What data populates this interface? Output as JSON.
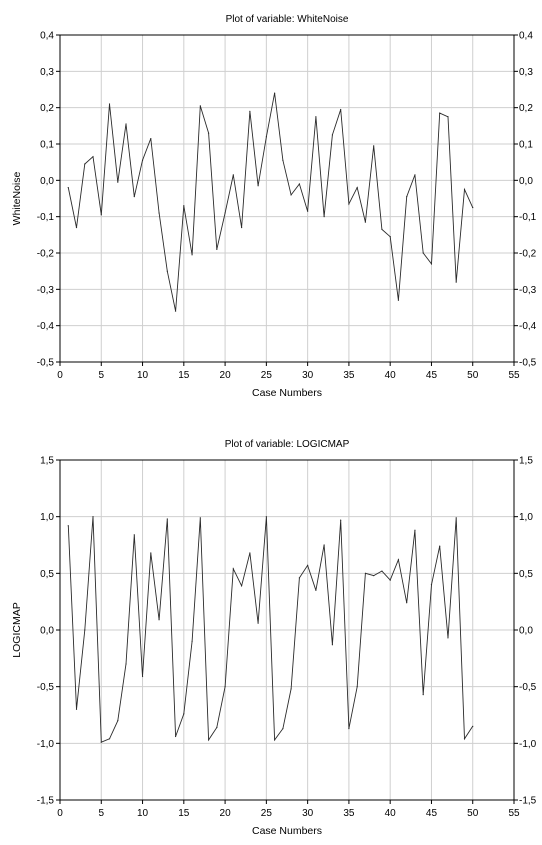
{
  "chart_data": [
    {
      "type": "line",
      "title": "Plot of variable: WhiteNoise",
      "xlabel": "Case Numbers",
      "ylabel": "WhiteNoise",
      "xlim": [
        0,
        55
      ],
      "ylim": [
        -0.5,
        0.4
      ],
      "x_ticks": [
        0,
        5,
        10,
        15,
        20,
        25,
        30,
        35,
        40,
        45,
        50,
        55
      ],
      "x_tick_labels": [
        "0",
        "5",
        "10",
        "15",
        "20",
        "25",
        "30",
        "35",
        "40",
        "45",
        "50",
        "55"
      ],
      "y_ticks": [
        -0.5,
        -0.4,
        -0.3,
        -0.2,
        -0.1,
        0.0,
        0.1,
        0.2,
        0.3,
        0.4
      ],
      "y_tick_labels": [
        "-0,5",
        "-0,4",
        "-0,3",
        "-0,2",
        "-0,1",
        "0,0",
        "0,1",
        "0,2",
        "0,3",
        "0,4"
      ],
      "grid": true,
      "x": [
        1,
        2,
        3,
        4,
        5,
        6,
        7,
        8,
        9,
        10,
        11,
        12,
        13,
        14,
        15,
        16,
        17,
        18,
        19,
        20,
        21,
        22,
        23,
        24,
        25,
        26,
        27,
        28,
        29,
        30,
        31,
        32,
        33,
        34,
        35,
        36,
        37,
        38,
        39,
        40,
        41,
        42,
        43,
        44,
        45,
        46,
        47,
        48,
        49,
        50
      ],
      "y": [
        -0.02,
        -0.13,
        0.045,
        0.065,
        -0.095,
        0.21,
        -0.005,
        0.155,
        -0.045,
        0.055,
        0.115,
        -0.09,
        -0.25,
        -0.36,
        -0.07,
        -0.205,
        0.205,
        0.13,
        -0.19,
        -0.09,
        0.015,
        -0.13,
        0.19,
        -0.015,
        0.12,
        0.24,
        0.055,
        -0.04,
        -0.01,
        -0.085,
        0.175,
        -0.1,
        0.125,
        0.195,
        -0.065,
        -0.02,
        -0.115,
        0.095,
        -0.135,
        -0.155,
        -0.33,
        -0.045,
        0.015,
        -0.2,
        -0.23,
        0.185,
        0.175,
        -0.28,
        -0.025,
        -0.075
      ]
    },
    {
      "type": "line",
      "title": "Plot of variable: LOGICMAP",
      "xlabel": "Case Numbers",
      "ylabel": "LOGICMAP",
      "xlim": [
        0,
        55
      ],
      "ylim": [
        -1.5,
        1.5
      ],
      "x_ticks": [
        0,
        5,
        10,
        15,
        20,
        25,
        30,
        35,
        40,
        45,
        50,
        55
      ],
      "x_tick_labels": [
        "0",
        "5",
        "10",
        "15",
        "20",
        "25",
        "30",
        "35",
        "40",
        "45",
        "50",
        "55"
      ],
      "y_ticks": [
        -1.5,
        -1.0,
        -0.5,
        0.0,
        0.5,
        1.0,
        1.5
      ],
      "y_tick_labels": [
        "-1,5",
        "-1,0",
        "-0,5",
        "0,0",
        "0,5",
        "1,0",
        "1,5"
      ],
      "grid": true,
      "x": [
        1,
        2,
        3,
        4,
        5,
        6,
        7,
        8,
        9,
        10,
        11,
        12,
        13,
        14,
        15,
        16,
        17,
        18,
        19,
        20,
        21,
        22,
        23,
        24,
        25,
        26,
        27,
        28,
        29,
        30,
        31,
        32,
        33,
        34,
        35,
        36,
        37,
        38,
        39,
        40,
        41,
        42,
        43,
        44,
        45,
        46,
        47,
        48,
        49,
        50
      ],
      "y": [
        0.92,
        -0.7,
        0.0,
        1.0,
        -0.99,
        -0.96,
        -0.8,
        -0.3,
        0.84,
        -0.41,
        0.68,
        0.09,
        0.98,
        -0.94,
        -0.74,
        -0.1,
        0.99,
        -0.97,
        -0.86,
        -0.5,
        0.54,
        0.39,
        0.68,
        0.06,
        1.0,
        -0.97,
        -0.87,
        -0.52,
        0.46,
        0.57,
        0.35,
        0.75,
        -0.13,
        0.97,
        -0.87,
        -0.5,
        0.5,
        0.48,
        0.52,
        0.44,
        0.62,
        0.24,
        0.88,
        -0.57,
        0.4,
        0.74,
        -0.07,
        0.99,
        -0.96,
        -0.85
      ]
    }
  ]
}
